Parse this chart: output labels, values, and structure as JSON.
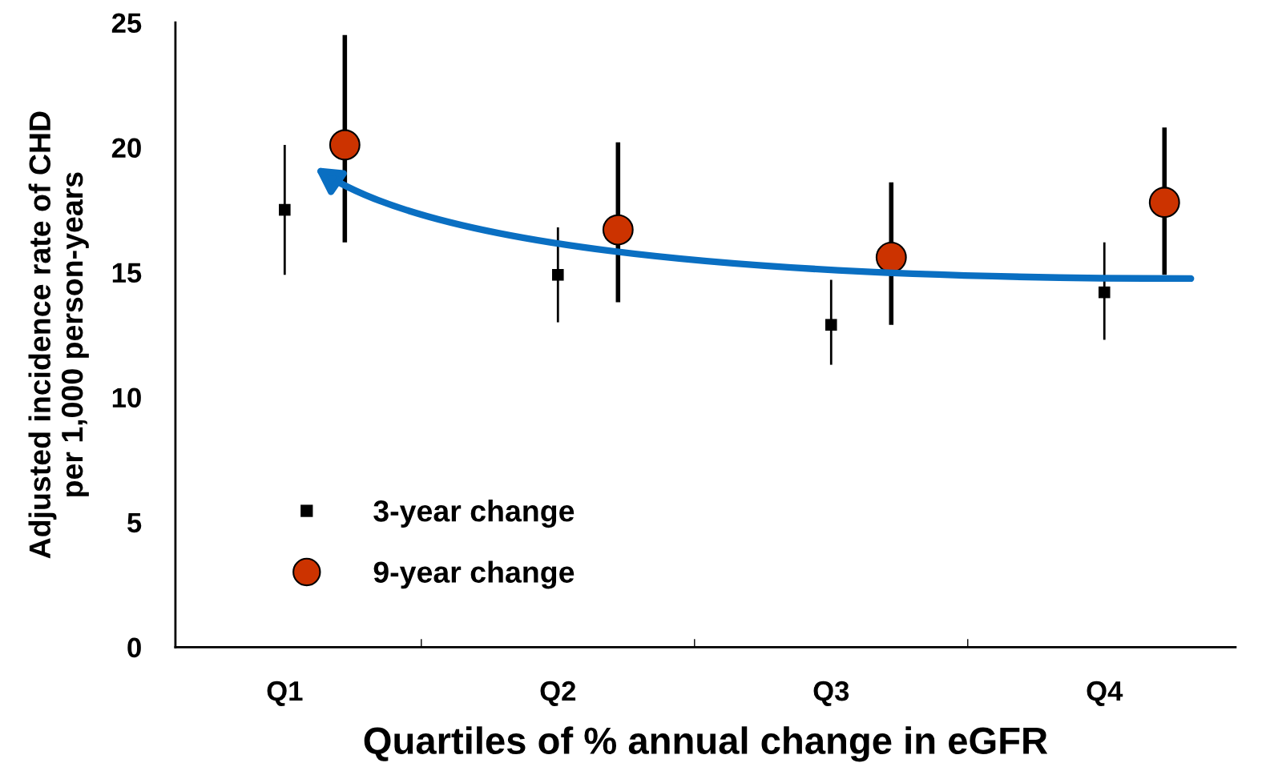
{
  "chart_data": {
    "type": "scatter",
    "xlabel": "Quartiles of % annual change in eGFR",
    "ylabel": "Adjusted incidence rate of CHD\nper 1,000 person-years",
    "series": [
      {
        "name": "3-year change",
        "color": "#000000",
        "marker": "square",
        "x": [
          "Q1",
          "Q2",
          "Q3",
          "Q4"
        ],
        "values": [
          17.5,
          14.9,
          12.9,
          14.2
        ],
        "errors": [
          [
            14.9,
            20.1
          ],
          [
            13.0,
            16.8
          ],
          [
            11.3,
            14.7
          ],
          [
            12.3,
            16.2
          ]
        ]
      },
      {
        "name": "9-year change",
        "color": "#cc3300",
        "marker": "circle",
        "x": [
          "Q1",
          "Q2",
          "Q3",
          "Q4"
        ],
        "values": [
          20.1,
          16.7,
          15.6,
          17.8
        ],
        "errors": [
          [
            16.2,
            24.5
          ],
          [
            13.8,
            20.2
          ],
          [
            12.9,
            18.6
          ],
          [
            14.9,
            20.8
          ]
        ]
      }
    ],
    "categories": [
      "Q1",
      "Q2",
      "Q3",
      "Q4"
    ],
    "ylim": [
      0,
      25
    ],
    "yticks": [
      0,
      5,
      10,
      15,
      20,
      25
    ],
    "grid": false,
    "legend": "bottom left"
  }
}
